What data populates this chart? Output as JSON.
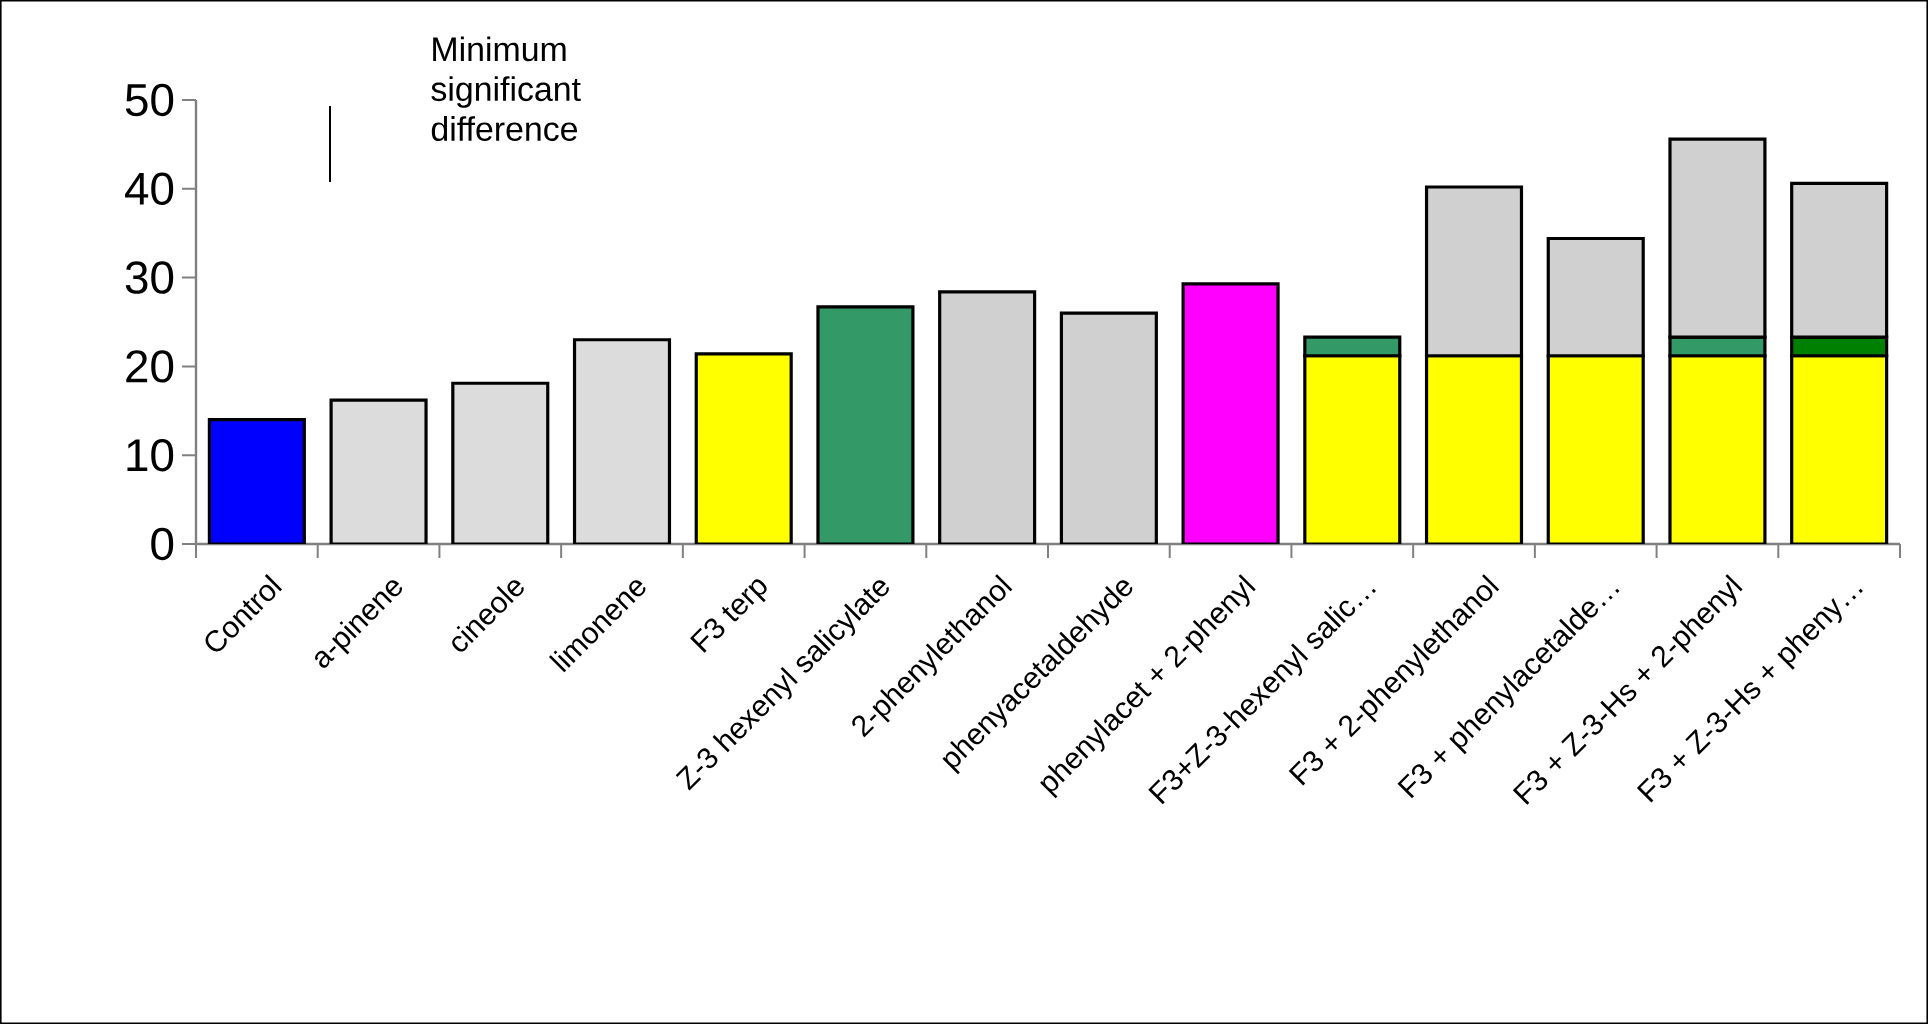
{
  "chart_data": {
    "type": "bar",
    "stacked": true,
    "categories": [
      "Control",
      "a-pinene",
      "cineole",
      "limonene",
      "F3 terp",
      "Z-3 hexenyl salicylate",
      "2-phenylethanol",
      "phenyacetaldehyde",
      "phenylacet + 2-phenyl",
      "F3+Z-3-hexenyl salic…",
      "F3 + 2-phenylethanol",
      "F3 + phenylacetalde…",
      "F3 + Z-3-Hs + 2-phenyl",
      "F3 + Z-3-Hs + pheny…"
    ],
    "series": [
      {
        "values": [
          14,
          16.2,
          18.1,
          23,
          21.4,
          26.7,
          28.4,
          26,
          29.3,
          21.2,
          21.2,
          21.2,
          21.2,
          21.2
        ],
        "colors": [
          "#0000ff",
          "#dcdcdc",
          "#dcdcdc",
          "#dcdcdc",
          "#ffff00",
          "#339966",
          "#d0d0d0",
          "#d0d0d0",
          "#ff00ff",
          "#ffff00",
          "#ffff00",
          "#ffff00",
          "#ffff00",
          "#ffff00"
        ]
      },
      {
        "values": [
          null,
          null,
          null,
          null,
          null,
          null,
          null,
          null,
          null,
          2.1,
          null,
          null,
          2.1,
          2.1
        ],
        "colors": [
          "#339966",
          "#339966",
          "#339966",
          "#339966",
          "#339966",
          "#339966",
          "#339966",
          "#339966",
          "#339966",
          "#339966",
          "#339966",
          "#339966",
          "#339966",
          "#008000"
        ]
      },
      {
        "values": [
          null,
          null,
          null,
          null,
          null,
          null,
          null,
          null,
          null,
          null,
          19,
          13.2,
          22.3,
          17.3
        ],
        "color": "#d0d0d0"
      }
    ],
    "ylim": [
      0,
      50
    ],
    "yticks": [
      0,
      10,
      20,
      30,
      40,
      50
    ],
    "annotations": [
      "Minimum significant difference"
    ],
    "grid": false
  }
}
